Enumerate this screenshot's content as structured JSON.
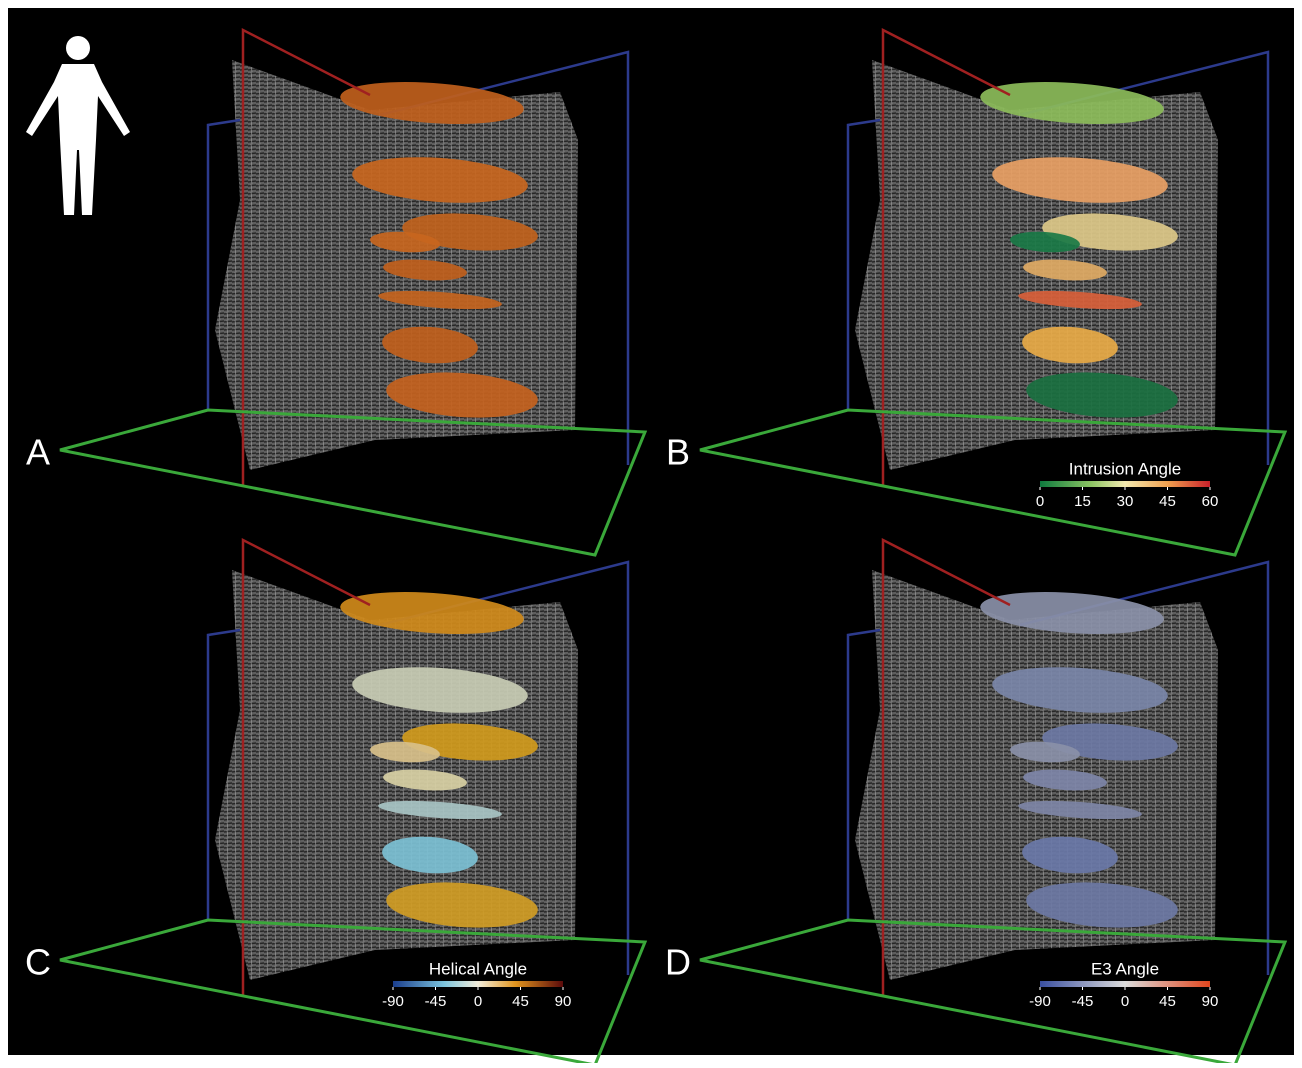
{
  "panels": [
    {
      "label": "A"
    },
    {
      "label": "B",
      "colorbar": {
        "title": "Intrusion Angle",
        "ticks": [
          0,
          15,
          30,
          45,
          60
        ]
      }
    },
    {
      "label": "C",
      "colorbar": {
        "title": "Helical Angle",
        "ticks": [
          -90,
          -45,
          0,
          45,
          90
        ]
      }
    },
    {
      "label": "D",
      "colorbar": {
        "title": "E3 Angle",
        "ticks": [
          -90,
          -45,
          0,
          45,
          90
        ]
      }
    }
  ]
}
